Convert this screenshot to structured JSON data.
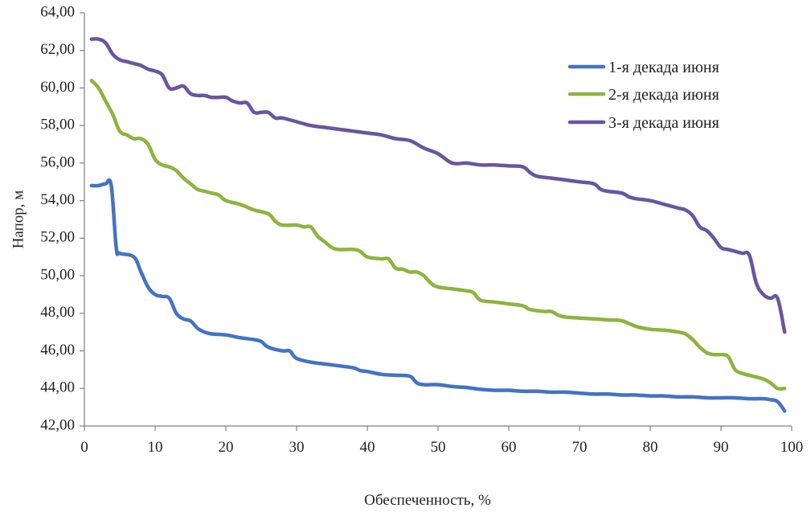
{
  "chart_data": {
    "type": "line",
    "title": "",
    "xlabel": "Обеспеченность, %",
    "ylabel": "Напор, м",
    "xlim": [
      0,
      100
    ],
    "ylim": [
      42,
      64
    ],
    "x_ticks": [
      0,
      10,
      20,
      30,
      40,
      50,
      60,
      70,
      80,
      90,
      100
    ],
    "x_tick_labels": [
      "0",
      "10",
      "20",
      "30",
      "40",
      "50",
      "60",
      "70",
      "80",
      "90",
      "100"
    ],
    "y_ticks": [
      42,
      44,
      46,
      48,
      50,
      52,
      54,
      56,
      58,
      60,
      62,
      64
    ],
    "y_tick_labels": [
      "42,00",
      "44,00",
      "46,00",
      "48,00",
      "50,00",
      "52,00",
      "54,00",
      "56,00",
      "58,00",
      "60,00",
      "62,00",
      "64,00"
    ],
    "grid": false,
    "legend_position": "top-right",
    "series": [
      {
        "name": "1-я декада июня",
        "color": "#4472c4",
        "x": [
          1,
          2,
          3,
          3.8,
          4.5,
          5,
          7,
          8,
          9,
          10,
          11,
          12,
          13,
          14,
          15,
          16,
          17,
          18,
          20,
          22,
          24,
          25,
          26,
          28,
          29,
          30,
          32,
          34,
          36,
          38,
          39,
          40,
          42,
          44,
          46,
          47,
          48,
          50,
          52,
          54,
          56,
          58,
          60,
          62,
          64,
          66,
          68,
          70,
          72,
          74,
          76,
          78,
          80,
          82,
          84,
          86,
          88,
          90,
          92,
          94,
          96,
          97,
          98,
          99
        ],
        "y": [
          54.8,
          54.8,
          54.9,
          54.8,
          51.5,
          51.2,
          51.0,
          50.2,
          49.4,
          49.0,
          48.9,
          48.8,
          48.0,
          47.7,
          47.6,
          47.2,
          47.0,
          46.9,
          46.85,
          46.7,
          46.6,
          46.5,
          46.2,
          46.0,
          46.0,
          45.6,
          45.4,
          45.3,
          45.2,
          45.1,
          44.95,
          44.9,
          44.75,
          44.7,
          44.65,
          44.3,
          44.2,
          44.2,
          44.1,
          44.05,
          43.95,
          43.9,
          43.9,
          43.85,
          43.85,
          43.8,
          43.8,
          43.75,
          43.7,
          43.7,
          43.65,
          43.65,
          43.6,
          43.6,
          43.55,
          43.55,
          43.5,
          43.5,
          43.5,
          43.45,
          43.45,
          43.4,
          43.3,
          42.8
        ]
      },
      {
        "name": "2-я декада июня",
        "color": "#8db43e",
        "x": [
          1,
          2,
          3,
          4,
          5,
          6,
          7,
          8,
          9,
          10,
          11,
          12,
          13,
          14,
          15,
          16,
          17,
          18,
          19,
          20,
          22,
          24,
          26,
          27,
          28,
          30,
          31,
          32,
          33,
          34,
          35,
          36,
          38,
          39,
          40,
          42,
          43,
          44,
          45,
          46,
          47,
          48,
          49,
          50,
          52,
          54,
          55,
          56,
          58,
          60,
          62,
          63,
          65,
          66,
          67,
          68,
          70,
          72,
          74,
          76,
          78,
          80,
          82,
          84,
          85,
          86,
          87,
          88,
          89,
          90,
          91,
          92,
          93,
          94,
          96,
          97,
          98,
          99
        ],
        "y": [
          60.4,
          60.0,
          59.3,
          58.6,
          57.7,
          57.5,
          57.3,
          57.3,
          57.0,
          56.2,
          55.9,
          55.8,
          55.6,
          55.2,
          54.9,
          54.6,
          54.5,
          54.4,
          54.3,
          54.0,
          53.8,
          53.5,
          53.3,
          52.9,
          52.7,
          52.7,
          52.6,
          52.6,
          52.1,
          51.8,
          51.5,
          51.4,
          51.4,
          51.3,
          51.0,
          50.9,
          50.9,
          50.4,
          50.35,
          50.2,
          50.2,
          50.0,
          49.6,
          49.4,
          49.3,
          49.2,
          49.1,
          48.7,
          48.6,
          48.5,
          48.4,
          48.2,
          48.1,
          48.1,
          47.9,
          47.8,
          47.75,
          47.7,
          47.65,
          47.6,
          47.3,
          47.15,
          47.1,
          47.0,
          46.9,
          46.6,
          46.2,
          45.9,
          45.8,
          45.8,
          45.7,
          45.0,
          44.8,
          44.7,
          44.5,
          44.3,
          44.0,
          44.0
        ]
      },
      {
        "name": "3-я декада июня",
        "color": "#6a55a0",
        "x": [
          1,
          2,
          3,
          4,
          5,
          6,
          7,
          8,
          9,
          10,
          11,
          12,
          13,
          14,
          15,
          16,
          17,
          18,
          19,
          20,
          21,
          22,
          23,
          24,
          25,
          26,
          27,
          28,
          30,
          32,
          34,
          36,
          38,
          40,
          42,
          44,
          46,
          48,
          50,
          52,
          54,
          56,
          58,
          60,
          62,
          63,
          64,
          66,
          68,
          70,
          72,
          73,
          74,
          76,
          77,
          78,
          80,
          82,
          84,
          85,
          86,
          87,
          88,
          89,
          90,
          91,
          92,
          93,
          94,
          95,
          96,
          97,
          98,
          99
        ],
        "y": [
          62.6,
          62.6,
          62.4,
          61.8,
          61.5,
          61.4,
          61.3,
          61.2,
          61.0,
          60.9,
          60.7,
          60.0,
          60.0,
          60.1,
          59.7,
          59.6,
          59.6,
          59.5,
          59.5,
          59.5,
          59.3,
          59.2,
          59.2,
          58.7,
          58.7,
          58.7,
          58.4,
          58.4,
          58.2,
          58.0,
          57.9,
          57.8,
          57.7,
          57.6,
          57.5,
          57.3,
          57.2,
          56.8,
          56.5,
          56.0,
          56.0,
          55.9,
          55.9,
          55.85,
          55.8,
          55.5,
          55.3,
          55.2,
          55.1,
          55.0,
          54.9,
          54.6,
          54.5,
          54.4,
          54.2,
          54.1,
          54.0,
          53.8,
          53.6,
          53.5,
          53.2,
          52.6,
          52.4,
          52.0,
          51.5,
          51.4,
          51.3,
          51.2,
          51.1,
          49.6,
          49.0,
          48.8,
          48.8,
          47.0
        ]
      }
    ]
  }
}
